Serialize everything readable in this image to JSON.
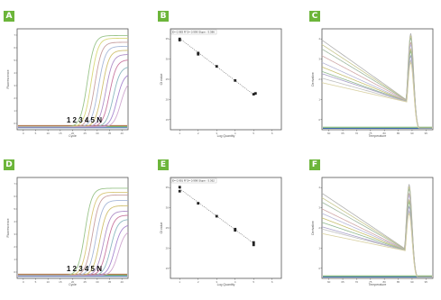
{
  "panels": [
    {
      "id": "A",
      "chart_data": {
        "type": "line",
        "ylabel": "Fluorescence",
        "xlabel": "Cycle",
        "x_ticks": [
          "0",
          "5",
          "10",
          "15",
          "20",
          "25",
          "30",
          "35",
          "40"
        ],
        "y_ticks": [
          "0",
          "1",
          "2",
          "3",
          "4",
          "5",
          "6",
          "7"
        ],
        "xlim": [
          0,
          45
        ],
        "ylim": [
          0,
          7.5
        ],
        "annotation": "1 2 3 4 5 N",
        "curve_colors": [
          "#9ac48a",
          "#d8d87a",
          "#c8a0a0",
          "#a7b8d8",
          "#d0c070",
          "#b090c8",
          "#c878a0",
          "#8cb8c0",
          "#a888d0",
          "#d0a8d0"
        ],
        "midpoints": [
          28.5,
          30.0,
          31.5,
          33.0,
          34.5,
          36.0,
          37.5,
          39.0,
          40.5,
          42.0
        ],
        "plateaus": [
          6.8,
          6.6,
          6.3,
          6.0,
          5.7,
          5.4,
          5.0,
          4.5,
          4.0,
          3.5
        ],
        "baseline_colors": [
          "#3a6aa8",
          "#6aa860",
          "#a86a3a"
        ]
      }
    },
    {
      "id": "B",
      "chart_data": {
        "type": "scatter",
        "ylabel": "Ct value",
        "xlabel": "Log Quantity",
        "equation": "E= 0.983 R^2= 0.999 Slope: -3.386",
        "x_ticks": [
          "1",
          "2",
          "3",
          "4",
          "5",
          "6"
        ],
        "y_ticks": [
          "15",
          "20",
          "25",
          "30",
          "35"
        ],
        "xlim": [
          0.5,
          6.5
        ],
        "ylim": [
          12,
          37
        ],
        "points": [
          [
            1,
            34.5
          ],
          [
            1,
            34.2
          ],
          [
            2,
            31.0
          ],
          [
            2,
            30.7
          ],
          [
            3,
            27.7
          ],
          [
            4,
            24.2
          ],
          [
            5,
            20.8
          ],
          [
            5.1,
            21.0
          ]
        ],
        "fit": [
          [
            1,
            34.6
          ],
          [
            5,
            20.7
          ]
        ]
      }
    },
    {
      "id": "C",
      "chart_data": {
        "type": "line",
        "ylabel": "Derivative",
        "xlabel": "Temperature",
        "x_ticks": [
          "60",
          "65",
          "70",
          "75",
          "80",
          "85",
          "90",
          "95"
        ],
        "y_ticks": [
          "0",
          "1",
          "2",
          "3",
          "4"
        ],
        "xlim": [
          60,
          95
        ],
        "ylim": [
          0,
          4.5
        ],
        "peak_x": 88,
        "curve_colors": [
          "#b0b0b0",
          "#c8c890",
          "#a0b8a0",
          "#d0a8a8",
          "#b8b8d8",
          "#c8c070",
          "#90b890",
          "#a8a0c8",
          "#c0c0c0",
          "#d8d0a0"
        ],
        "starts": [
          4.0,
          3.8,
          3.6,
          3.3,
          3.0,
          2.8,
          2.6,
          2.5,
          2.3,
          2.1
        ],
        "peaks": [
          4.3,
          4.2,
          4.1,
          3.9,
          3.8,
          3.6,
          3.5,
          3.3,
          3.1,
          3.0
        ],
        "baseline_colors": [
          "#3a6aa8",
          "#6aa860"
        ]
      }
    },
    {
      "id": "D",
      "chart_data": {
        "type": "line",
        "ylabel": "Fluorescence",
        "xlabel": "Cycle",
        "x_ticks": [
          "0",
          "5",
          "10",
          "15",
          "20",
          "25",
          "30",
          "35",
          "40"
        ],
        "y_ticks": [
          "0",
          "1",
          "2",
          "3",
          "4",
          "5",
          "6",
          "7"
        ],
        "xlim": [
          0,
          45
        ],
        "ylim": [
          0,
          7.5
        ],
        "annotation": "1 2 3 4 5 N",
        "curve_colors": [
          "#9ac48a",
          "#d8c87a",
          "#c8a0a0",
          "#a7b8d8",
          "#d0c070",
          "#b090c8",
          "#c878a0",
          "#8cb8c0",
          "#a888d0",
          "#d0a8d0"
        ],
        "midpoints": [
          27.5,
          29.0,
          30.5,
          32.0,
          33.5,
          35.0,
          36.5,
          38.0,
          39.5,
          41.0
        ],
        "plateaus": [
          6.5,
          6.2,
          6.0,
          5.6,
          5.2,
          4.8,
          4.5,
          4.2,
          3.8,
          3.4
        ],
        "baseline_colors": [
          "#3a6aa8",
          "#6aa860",
          "#a86a3a"
        ]
      }
    },
    {
      "id": "E",
      "chart_data": {
        "type": "scatter",
        "ylabel": "Ct value",
        "xlabel": "Log Quantity",
        "equation": "E= 0.991 R^2= 0.998 Slope: -3.362",
        "x_ticks": [
          "1",
          "2",
          "3",
          "4",
          "5",
          "6"
        ],
        "y_ticks": [
          "15",
          "20",
          "25",
          "30",
          "35"
        ],
        "xlim": [
          0.5,
          6.5
        ],
        "ylim": [
          12,
          37
        ],
        "points": [
          [
            1,
            34.6
          ],
          [
            1,
            33.6
          ],
          [
            2,
            30.6
          ],
          [
            3,
            27.4
          ],
          [
            4,
            24.2
          ],
          [
            4,
            23.9
          ],
          [
            5,
            20.9
          ],
          [
            5,
            20.3
          ]
        ],
        "fit": [
          [
            1,
            34.2
          ],
          [
            5,
            20.7
          ]
        ]
      }
    },
    {
      "id": "F",
      "chart_data": {
        "type": "line",
        "ylabel": "Derivative",
        "xlabel": "Temperature",
        "x_ticks": [
          "60",
          "65",
          "70",
          "75",
          "80",
          "85",
          "90",
          "95"
        ],
        "y_ticks": [
          "0",
          "1",
          "2",
          "3",
          "4"
        ],
        "xlim": [
          60,
          95
        ],
        "ylim": [
          0,
          4.5
        ],
        "peak_x": 87.5,
        "curve_colors": [
          "#b0b0b0",
          "#c8c890",
          "#a0b8a0",
          "#d0a8a8",
          "#b8b8d8",
          "#c8c070",
          "#90b890",
          "#a8a0c8",
          "#c0c0c0",
          "#d8d0a0"
        ],
        "starts": [
          3.8,
          3.6,
          3.4,
          3.1,
          2.9,
          2.7,
          2.5,
          2.3,
          2.2,
          2.0
        ],
        "peaks": [
          4.2,
          4.1,
          4.0,
          3.8,
          3.7,
          3.5,
          3.4,
          3.2,
          3.0,
          2.9
        ],
        "baseline_colors": [
          "#3a6aa8",
          "#6aa860"
        ]
      }
    }
  ]
}
